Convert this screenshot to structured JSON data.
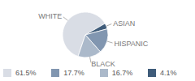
{
  "chart_data": {
    "type": "pie",
    "categories": [
      "WHITE",
      "ASIAN",
      "HISPANIC",
      "BLACK"
    ],
    "values": [
      61.5,
      4.1,
      17.7,
      16.7
    ],
    "value_labels": [
      "61.5%",
      "4.1%",
      "17.7%",
      "16.7%"
    ],
    "colors": [
      "#d9dde5",
      "#3f5c7a",
      "#8196b0",
      "#abb9ca"
    ],
    "legend": "bottom"
  }
}
